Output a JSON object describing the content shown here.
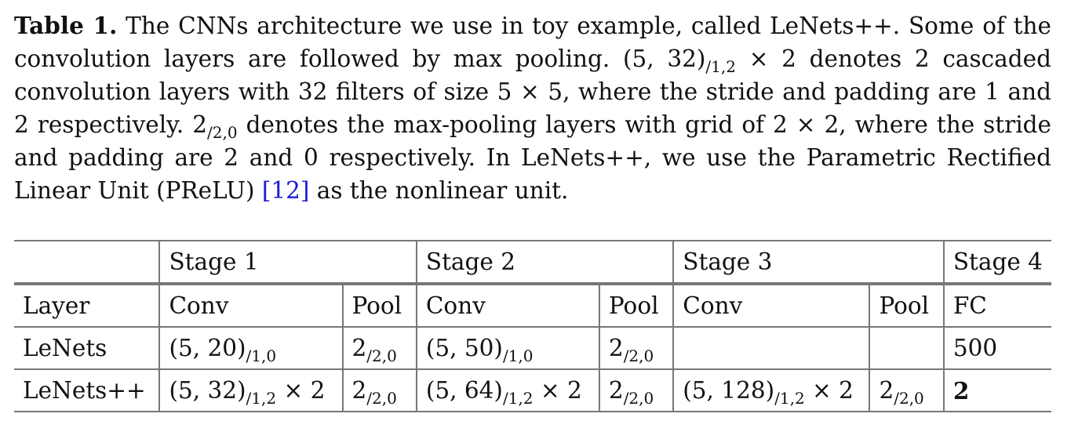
{
  "caption": {
    "label": "Table 1.",
    "text_a": " The CNNs architecture we use in toy example, called LeNets++. Some of the convolution layers are followed by max pooling. (5, 32)",
    "sub_a": "/1,2",
    "text_b": " × 2 denotes 2 cascaded convolution layers with 32 filters of size 5 × 5, where the stride and padding are 1 and 2 respectively. 2",
    "sub_b": "/2,0",
    "text_c": " denotes the max-pooling layers with grid of 2 × 2, where the stride and padding are 2 and 0 respectively. In LeNets++, we use the Parametric Rectified Linear Unit (PReLU) ",
    "citation": "[12]",
    "text_d": " as the nonlinear unit."
  },
  "table": {
    "stages": [
      "Stage 1",
      "Stage 2",
      "Stage 3",
      "Stage 4"
    ],
    "layer_row": {
      "label": "Layer",
      "cells": [
        "Conv",
        "Pool",
        "Conv",
        "Pool",
        "Conv",
        "Pool",
        "FC"
      ]
    },
    "lenets": {
      "label": "LeNets",
      "s1_conv": "(5, 20)",
      "s1_conv_sub": "/1,0",
      "s1_pool": "2",
      "s1_pool_sub": "/2,0",
      "s2_conv": "(5, 50)",
      "s2_conv_sub": "/1,0",
      "s2_pool": "2",
      "s2_pool_sub": "/2,0",
      "s3_conv": "",
      "s3_pool": "",
      "fc": "500"
    },
    "lenetspp": {
      "label": "LeNets++",
      "s1_conv": "(5, 32)",
      "s1_conv_sub": "/1,2",
      "s1_conv_suffix": " × 2",
      "s1_pool": "2",
      "s1_pool_sub": "/2,0",
      "s2_conv": "(5, 64)",
      "s2_conv_sub": "/1,2",
      "s2_conv_suffix": " × 2",
      "s2_pool": "2",
      "s2_pool_sub": "/2,0",
      "s3_conv": "(5, 128)",
      "s3_conv_sub": "/1,2",
      "s3_conv_suffix": " × 2",
      "s3_pool": "2",
      "s3_pool_sub": "/2,0",
      "fc": "2"
    }
  }
}
